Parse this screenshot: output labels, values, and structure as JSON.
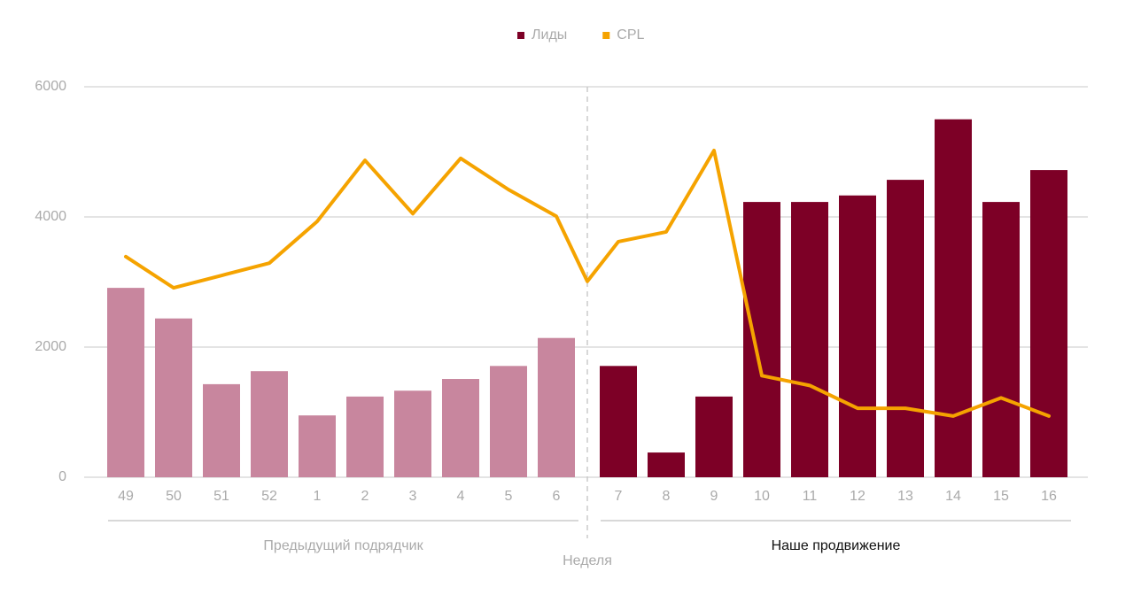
{
  "chart_data": {
    "type": "bar",
    "x_label": "Неделя",
    "categories": [
      "49",
      "50",
      "51",
      "52",
      "1",
      "2",
      "3",
      "4",
      "5",
      "6",
      null,
      "7",
      "8",
      "9",
      "10",
      "11",
      "12",
      "13",
      "14",
      "15",
      "16"
    ],
    "series": [
      {
        "name": "Лиды",
        "type": "bar",
        "color": "#7d0026",
        "colors": [
          "#c8869e",
          "#c8869e",
          "#c8869e",
          "#c8869e",
          "#c8869e",
          "#c8869e",
          "#c8869e",
          "#c8869e",
          "#c8869e",
          "#c8869e",
          null,
          "#7d0026",
          "#7d0026",
          "#7d0026",
          "#7d0026",
          "#7d0026",
          "#7d0026",
          "#7d0026",
          "#7d0026",
          "#7d0026",
          "#7d0026"
        ],
        "values": [
          2910,
          2440,
          1430,
          1630,
          950,
          1240,
          1330,
          1510,
          1710,
          2140,
          null,
          1710,
          380,
          1240,
          4230,
          4230,
          4330,
          4570,
          5500,
          4230,
          4720
        ]
      },
      {
        "name": "CPL",
        "type": "line",
        "color": "#f5a300",
        "values": [
          3390,
          2910,
          3100,
          3290,
          3930,
          4870,
          4050,
          4900,
          4420,
          4010,
          3010,
          3620,
          3770,
          5020,
          1560,
          1410,
          1060,
          1060,
          940,
          1220,
          940
        ]
      }
    ],
    "groups": [
      "Предыдущий подрядчик",
      "Наше продвижение"
    ],
    "ylim": [
      0,
      6000
    ],
    "yticks": [
      0,
      2000,
      4000,
      6000
    ],
    "grid": true,
    "legend": "top"
  }
}
